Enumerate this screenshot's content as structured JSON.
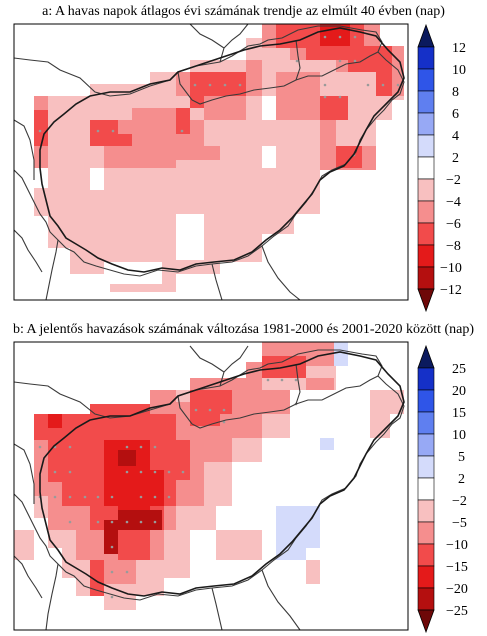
{
  "panels": [
    {
      "id": "a",
      "title": "a: A havas napok átlagos évi számának trendje az elmúlt 40 évben (nap)",
      "colorbar": {
        "labels": [
          "12",
          "10",
          "8",
          "6",
          "4",
          "2",
          "−2",
          "−4",
          "−6",
          "−8",
          "−10",
          "−12"
        ],
        "colors": [
          "#0b1a5e",
          "#1530c8",
          "#2f55e8",
          "#5f7ff0",
          "#97a9f5",
          "#d4dbfb",
          "#ffffff",
          "#f8c0c0",
          "#f58e8e",
          "#f24b4b",
          "#e41a1a",
          "#b40f0f",
          "#6e0808"
        ]
      }
    },
    {
      "id": "b",
      "title": "b: A jelentős havazások számának változása 1981-2000 és 2001-2020 között (nap)",
      "colorbar": {
        "labels": [
          "25",
          "20",
          "15",
          "10",
          "5",
          "2",
          "−2",
          "−5",
          "−10",
          "−15",
          "−20",
          "−25"
        ],
        "colors": [
          "#0b1a5e",
          "#1530c8",
          "#2f55e8",
          "#5f7ff0",
          "#97a9f5",
          "#d4dbfb",
          "#ffffff",
          "#f8c0c0",
          "#f58e8e",
          "#f24b4b",
          "#e41a1a",
          "#b40f0f",
          "#6e0808"
        ]
      }
    }
  ]
}
